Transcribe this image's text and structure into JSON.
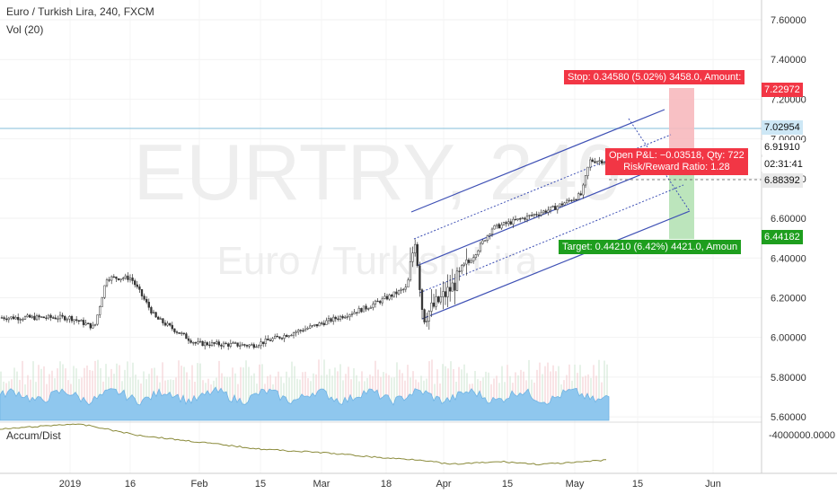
{
  "header": {
    "symbol_line": "Euro / Turkish Lira, 240, FXCM",
    "volume_label": "Vol (20)",
    "accum_label": "Accum/Dist"
  },
  "watermark": {
    "ticker": "EURTRY, 240",
    "name": "Euro / Turkish Lira"
  },
  "price_axis": {
    "ticks": [
      "7.60000",
      "7.40000",
      "7.20000",
      "7.00000",
      "6.80000",
      "6.60000",
      "6.40000",
      "6.20000",
      "6.00000",
      "5.80000",
      "5.60000"
    ],
    "indicator_tick": "-4000000.0000"
  },
  "time_axis": {
    "ticks": [
      "2019",
      "16",
      "Feb",
      "15",
      "Mar",
      "18",
      "Apr",
      "15",
      "May",
      "15",
      "Jun"
    ]
  },
  "price_tags": {
    "stop": "7.22972",
    "line": "7.02954",
    "last": "6.91910",
    "countdown": "02:31:41",
    "entry": "6.88392",
    "target": "6.44182"
  },
  "position": {
    "stop_label": "Stop: 0.34580 (5.02%) 3458.0, Amount:",
    "pnl_label": "Open P&L: −0.03518, Qty: 722",
    "rr_label": "Risk/Reward Ratio: 1.28",
    "target_label": "Target: 0.44210 (6.42%) 4421.0, Amoun"
  },
  "colors": {
    "red": "#f23645",
    "green": "#1e9e1e",
    "channel": "#3f51b5",
    "volume": "#8fc7ee",
    "accum": "#8a8a3a"
  },
  "chart_data": {
    "type": "candlestick",
    "symbol": "EURTRY",
    "interval": "240",
    "y_ticks": [
      7.6,
      7.4,
      7.2,
      7.0,
      6.8,
      6.6,
      6.4,
      6.2,
      6.0,
      5.8,
      5.6
    ],
    "x_ticks": [
      "2019",
      "16",
      "Feb",
      "15",
      "Mar",
      "18",
      "Apr",
      "15",
      "May",
      "15",
      "Jun"
    ],
    "approx_close_series": [
      {
        "date": "2019-01-01",
        "close": 6.1
      },
      {
        "date": "2019-01-07",
        "close": 6.05
      },
      {
        "date": "2019-01-10",
        "close": 6.3
      },
      {
        "date": "2019-01-16",
        "close": 6.3
      },
      {
        "date": "2019-01-22",
        "close": 6.1
      },
      {
        "date": "2019-02-01",
        "close": 5.97
      },
      {
        "date": "2019-02-15",
        "close": 5.96
      },
      {
        "date": "2019-03-01",
        "close": 6.05
      },
      {
        "date": "2019-03-15",
        "close": 6.15
      },
      {
        "date": "2019-03-25",
        "close": 6.25
      },
      {
        "date": "2019-03-27",
        "close": 6.5
      },
      {
        "date": "2019-03-29",
        "close": 6.1
      },
      {
        "date": "2019-04-05",
        "close": 6.25
      },
      {
        "date": "2019-04-15",
        "close": 6.55
      },
      {
        "date": "2019-04-30",
        "close": 6.65
      },
      {
        "date": "2019-05-07",
        "close": 6.72
      },
      {
        "date": "2019-05-09",
        "close": 6.89
      }
    ],
    "levels": {
      "stop": 7.22972,
      "horizontal": 7.02954,
      "last": 6.9191,
      "entry": 6.88392,
      "target": 6.44182
    }
  }
}
